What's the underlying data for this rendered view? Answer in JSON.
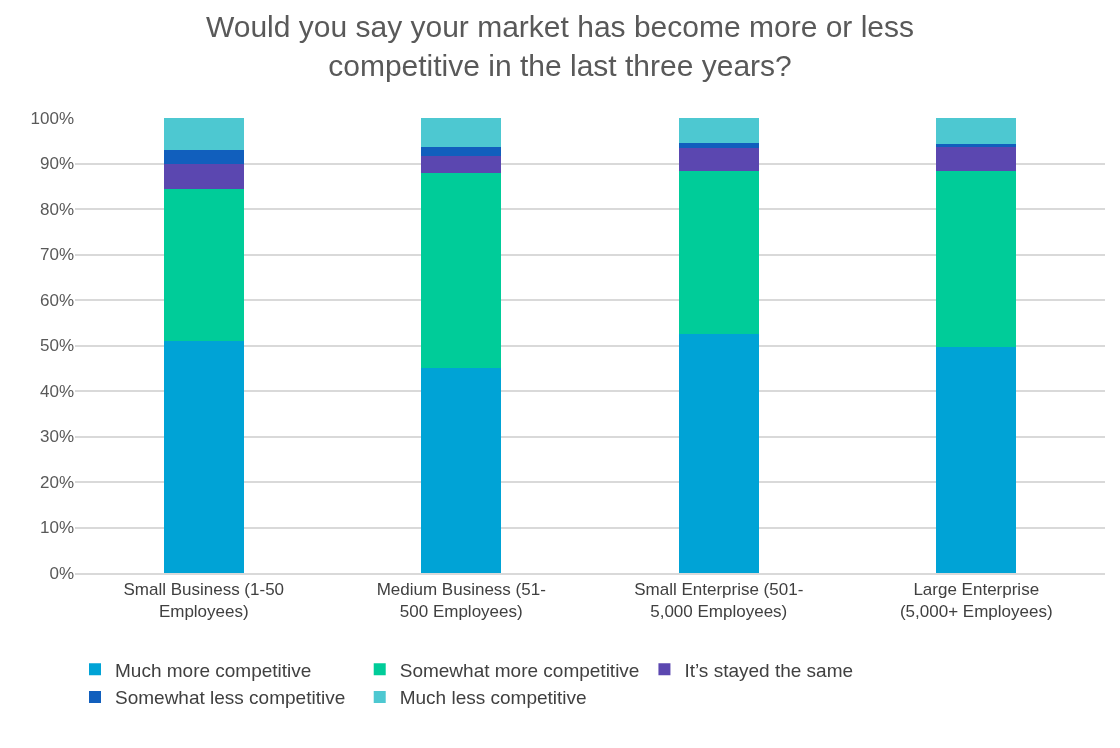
{
  "chart_data": {
    "type": "bar",
    "stacked": true,
    "title": "Would you say your market has become more or less\ncompetitive in the last three years?",
    "categories": [
      "Small Business (1-50\nEmployees)",
      "Medium Business (51-\n500 Employees)",
      "Small Enterprise (501-\n5,000 Employees)",
      "Large Enterprise\n(5,000+ Employees)"
    ],
    "series": [
      {
        "name": "Much more competitive",
        "color": "#00a3d6",
        "values": [
          51.0,
          45.0,
          52.6,
          49.7
        ]
      },
      {
        "name": "Somewhat more competitive",
        "color": "#00cc99",
        "values": [
          33.3,
          43.0,
          35.7,
          38.6
        ]
      },
      {
        "name": "It’s stayed the same",
        "color": "#5b47b0",
        "values": [
          5.7,
          3.7,
          5.1,
          5.3
        ]
      },
      {
        "name": "Somewhat less competitive",
        "color": "#115fbd",
        "values": [
          3.0,
          1.9,
          1.0,
          0.6
        ]
      },
      {
        "name": "Much less competitive",
        "color": "#4dc8d1",
        "values": [
          7.0,
          6.4,
          5.6,
          5.8
        ]
      }
    ],
    "ylim": [
      0,
      100
    ],
    "yticks": [
      {
        "value": 0,
        "label": "0%"
      },
      {
        "value": 10,
        "label": "10%"
      },
      {
        "value": 20,
        "label": "20%"
      },
      {
        "value": 30,
        "label": "30%"
      },
      {
        "value": 40,
        "label": "40%"
      },
      {
        "value": 50,
        "label": "50%"
      },
      {
        "value": 60,
        "label": "60%"
      },
      {
        "value": 70,
        "label": "70%"
      },
      {
        "value": 80,
        "label": "80%"
      },
      {
        "value": 90,
        "label": "90%"
      },
      {
        "value": 100,
        "label": "100%"
      }
    ],
    "grid": "y",
    "legend": "bottom"
  }
}
